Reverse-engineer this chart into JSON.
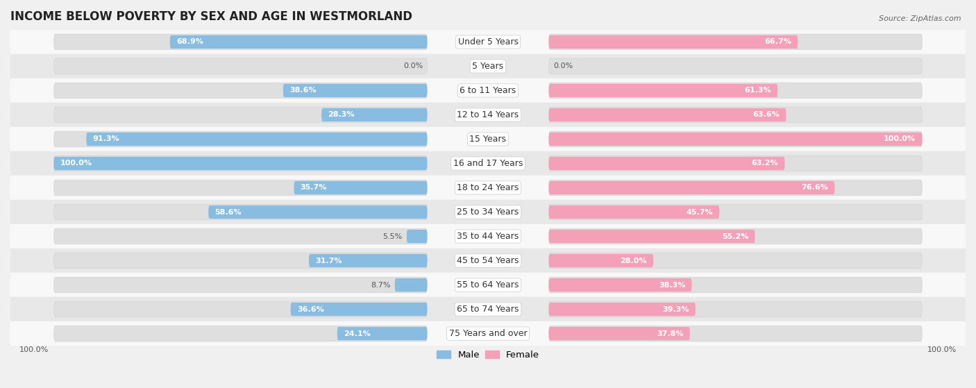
{
  "title": "INCOME BELOW POVERTY BY SEX AND AGE IN WESTMORLAND",
  "source": "Source: ZipAtlas.com",
  "categories": [
    "Under 5 Years",
    "5 Years",
    "6 to 11 Years",
    "12 to 14 Years",
    "15 Years",
    "16 and 17 Years",
    "18 to 24 Years",
    "25 to 34 Years",
    "35 to 44 Years",
    "45 to 54 Years",
    "55 to 64 Years",
    "65 to 74 Years",
    "75 Years and over"
  ],
  "male_values": [
    68.9,
    0.0,
    38.6,
    28.3,
    91.3,
    100.0,
    35.7,
    58.6,
    5.5,
    31.7,
    8.7,
    36.6,
    24.1
  ],
  "female_values": [
    66.7,
    0.0,
    61.3,
    63.6,
    100.0,
    63.2,
    76.6,
    45.7,
    55.2,
    28.0,
    38.3,
    39.3,
    37.8
  ],
  "male_color": "#88bce0",
  "female_color": "#f4a0b8",
  "male_label": "Male",
  "female_label": "Female",
  "background_color": "#f0f0f0",
  "row_bg_light": "#f8f8f8",
  "row_bg_dark": "#e8e8e8",
  "track_color": "#e0e0e0",
  "title_fontsize": 12,
  "label_fontsize": 9,
  "value_fontsize": 8,
  "legend_fontsize": 9.5
}
